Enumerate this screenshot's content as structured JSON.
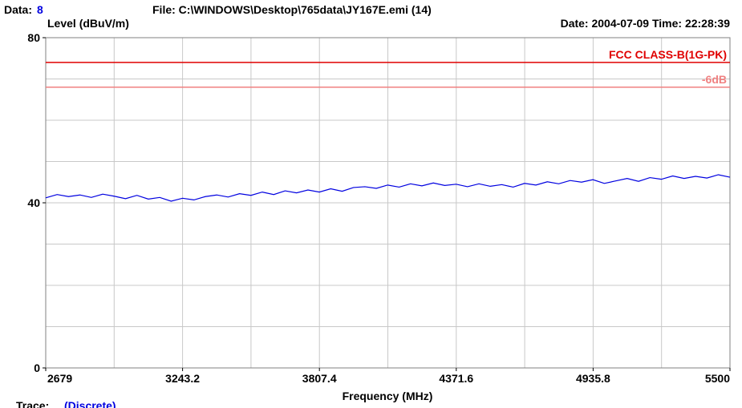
{
  "chart_data": {
    "type": "line",
    "header": {
      "data_label": "Data:",
      "data_number": "8",
      "file": "File: C:\\WINDOWS\\Desktop\\765data\\JY167E.emi  (14)",
      "datetime": "Date: 2004-07-09  Time: 22:28:39"
    },
    "y_label": "Level (dBuV/m)",
    "x_label": "Frequency (MHz)",
    "footer": {
      "trace_label": "Trace:",
      "trace_mode": "(Discrete)"
    },
    "xlim": [
      2679,
      5500
    ],
    "xticks": [
      2679,
      3243.2,
      3807.4,
      4371.6,
      4935.8,
      5500
    ],
    "xgrid": [
      2679,
      2961.1,
      3243.2,
      3525.3,
      3807.4,
      4089.5,
      4371.6,
      4653.7,
      4935.8,
      5217.9,
      5500
    ],
    "ylim": [
      0,
      80
    ],
    "yticks": [
      0,
      40,
      80
    ],
    "ygrid": [
      0,
      10,
      20,
      30,
      40,
      50,
      60,
      70,
      80
    ],
    "grid": true,
    "limits": [
      {
        "name": "FCC CLASS-B(1G-PK)",
        "value": 74,
        "color": "#e00000"
      },
      {
        "name": "-6dB",
        "value": 68,
        "color": "#f08080"
      }
    ],
    "x": [
      2679,
      2726,
      2773,
      2820,
      2867,
      2914,
      2961,
      3008,
      3055,
      3102,
      3149,
      3196,
      3243,
      3290,
      3337,
      3384,
      3431,
      3478,
      3525,
      3572,
      3619,
      3666,
      3713,
      3760,
      3807,
      3854,
      3901,
      3948,
      3995,
      4042,
      4089,
      4136,
      4183,
      4230,
      4277,
      4324,
      4371,
      4418,
      4465,
      4512,
      4559,
      4606,
      4653,
      4700,
      4747,
      4794,
      4841,
      4888,
      4935,
      4982,
      5029,
      5076,
      5123,
      5170,
      5217,
      5264,
      5311,
      5358,
      5405,
      5452,
      5500
    ],
    "series": [
      {
        "color": "#0000e0",
        "values": [
          41.2,
          42.0,
          41.5,
          41.9,
          41.3,
          42.1,
          41.6,
          41.0,
          41.8,
          40.9,
          41.3,
          40.4,
          41.1,
          40.7,
          41.5,
          41.9,
          41.4,
          42.2,
          41.8,
          42.6,
          42.0,
          42.9,
          42.4,
          43.1,
          42.6,
          43.4,
          42.8,
          43.7,
          43.9,
          43.5,
          44.3,
          43.8,
          44.6,
          44.1,
          44.8,
          44.2,
          44.5,
          43.9,
          44.6,
          44.0,
          44.4,
          43.8,
          44.7,
          44.3,
          45.1,
          44.6,
          45.4,
          45.0,
          45.6,
          44.7,
          45.3,
          45.9,
          45.2,
          46.1,
          45.7,
          46.5,
          45.9,
          46.4,
          46.0,
          46.8,
          46.2
        ]
      }
    ]
  }
}
